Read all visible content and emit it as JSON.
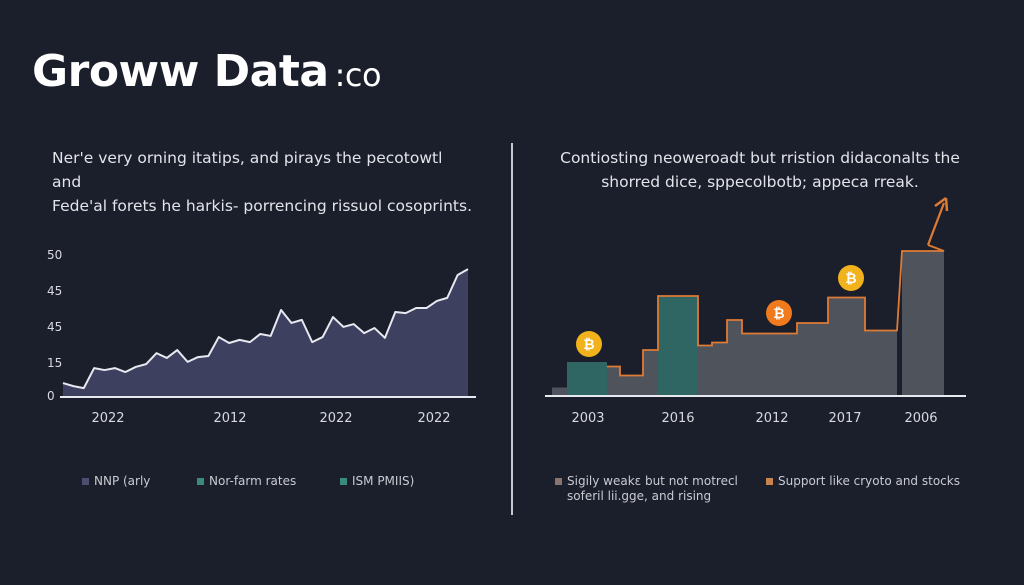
{
  "header": {
    "title": "Groww Data",
    "title_suffix": ":co"
  },
  "left_panel": {
    "description_lines": [
      "Ner'e very orning itatips, and pirays the pecotowtl and",
      "Fede'al forets he harkis- porrencing rissuol cosoprints."
    ],
    "legend": [
      {
        "label": "NNP (arly",
        "color": "#4b4e6e"
      },
      {
        "label": "Nor-farm rates",
        "color": "#3a8a80"
      },
      {
        "label": "ISM PMIIS)",
        "color": "#3a8a80"
      }
    ]
  },
  "right_panel": {
    "description_lines": [
      "Contiosting neoweroadt but rristion didaconalts the",
      "shorred dice, sppecolbotb; appeca rreak."
    ],
    "legend": [
      {
        "label": "Sigily weakε but not motrecl soferil lii.gge, and rising",
        "color": "#8a7470"
      },
      {
        "label": "Support like cryoto and stocks",
        "color": "#c8844f"
      }
    ]
  },
  "chart_data": [
    {
      "type": "area",
      "y_tick_labels": [
        "50",
        "45",
        "45",
        "15",
        "0"
      ],
      "ylim": [
        0,
        50
      ],
      "x_tick_labels": [
        "2022",
        "2012",
        "2022",
        "2022"
      ],
      "grid": false,
      "line_color": "#e8e9f0",
      "fill_color": "#44476a",
      "values": [
        4.6,
        3.5,
        2.8,
        9.9,
        9.2,
        9.9,
        8.5,
        10.3,
        11.3,
        15.2,
        13.5,
        16.3,
        12.1,
        13.8,
        14.2,
        20.9,
        18.8,
        19.9,
        19.1,
        22.0,
        21.3,
        30.5,
        25.9,
        27.0,
        19.1,
        20.9,
        28.0,
        24.5,
        25.5,
        22.3,
        24.1,
        20.6,
        29.8,
        29.4,
        31.2,
        31.2,
        33.7,
        34.8,
        42.9,
        45.0
      ]
    },
    {
      "type": "bar",
      "x_tick_labels": [
        "2003",
        "2016",
        "2012",
        "2017",
        "2006"
      ],
      "grid": false,
      "bars": [
        {
          "value": 5,
          "kind": "gray"
        },
        {
          "value": 22,
          "kind": "teal"
        },
        {
          "value": 19,
          "kind": "gray"
        },
        {
          "value": 13,
          "kind": "gray"
        },
        {
          "value": 30,
          "kind": "gray"
        },
        {
          "value": 66,
          "kind": "teal"
        },
        {
          "value": 33,
          "kind": "gray"
        },
        {
          "value": 35,
          "kind": "gray"
        },
        {
          "value": 50,
          "kind": "gray"
        },
        {
          "value": 41,
          "kind": "gray"
        },
        {
          "value": 41,
          "kind": "gray"
        },
        {
          "value": 48,
          "kind": "gray"
        },
        {
          "value": 65,
          "kind": "gray"
        },
        {
          "value": 43,
          "kind": "gray"
        },
        {
          "value": 96,
          "kind": "gray"
        }
      ],
      "colors": {
        "gray": "#4f535c",
        "teal": "#2f6664",
        "trend": "#e07b34",
        "coin_yellow": "#f2b21b",
        "coin_orange": "#f07a1c"
      },
      "coin_icons": [
        "bitcoin-icon",
        "bitcoin-icon",
        "bitcoin-icon"
      ]
    }
  ]
}
